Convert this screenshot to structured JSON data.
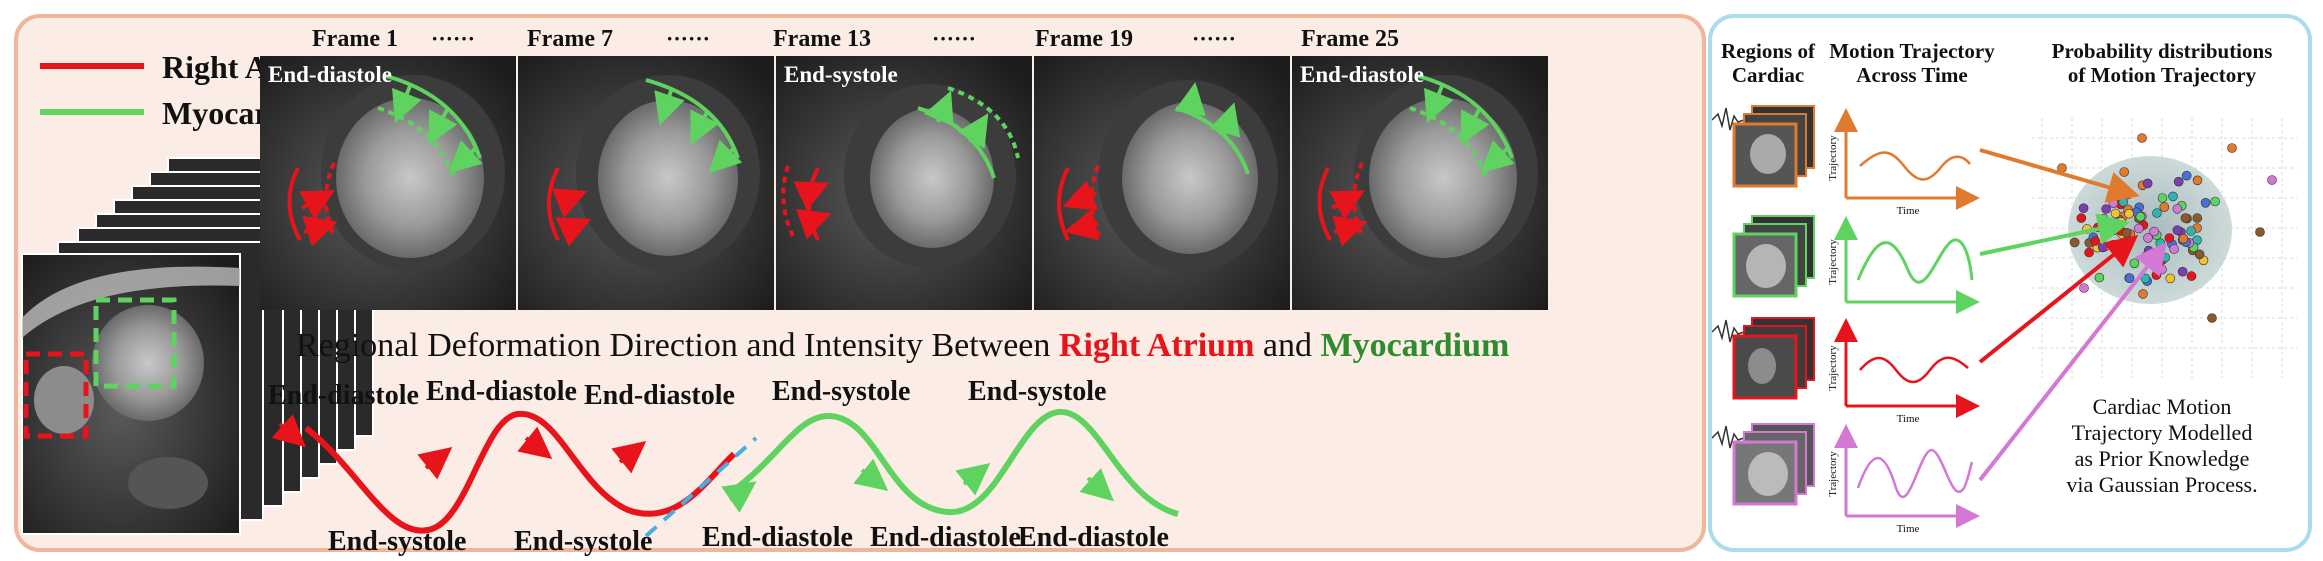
{
  "legend": {
    "right_atrium": {
      "label": "Right Atrium",
      "color": "#e8141b"
    },
    "myocardium": {
      "label": "Myocardium",
      "color": "#5fd35f"
    }
  },
  "frames": [
    {
      "title": "Frame 1",
      "phase": "End-diastole"
    },
    {
      "title": "Frame 7",
      "phase": ""
    },
    {
      "title": "Frame 13",
      "phase": "End-systole"
    },
    {
      "title": "Frame 19",
      "phase": ""
    },
    {
      "title": "Frame 25",
      "phase": "End-diastole"
    }
  ],
  "frame_ellipsis": "······",
  "deformation_title": {
    "prefix": "Regional Deformation Direction and Intensity Between ",
    "ra": "Right Atrium",
    "and": " and ",
    "myo": "Myocardium",
    "myo_color": "#2e8b2e"
  },
  "ra_wave": {
    "top_labels": [
      "End-diastole",
      "End-diastole",
      "End-diastole"
    ],
    "bottom_labels": [
      "End-systole",
      "End-systole"
    ]
  },
  "myo_wave": {
    "top_labels": [
      "End-systole",
      "End-systole"
    ],
    "bottom_labels": [
      "End-diastole",
      "End-diastole",
      "End-diastole"
    ]
  },
  "right": {
    "col1_title": [
      "Regions of",
      "Cardiac"
    ],
    "col2_title": [
      "Motion Trajectory",
      "Across Time"
    ],
    "col3_title": [
      "Probability distributions",
      "of Motion Trajectory"
    ],
    "axis_y": "Trajectory",
    "axis_x": "Time",
    "rows": [
      {
        "color": "#e07a2e"
      },
      {
        "color": "#5fd35f"
      },
      {
        "color": "#e8141b"
      },
      {
        "color": "#d478d6"
      }
    ],
    "caption": [
      "Cardiac Motion",
      "Trajectory Modelled",
      "as Prior Knowledge",
      "via Gaussian Process."
    ]
  }
}
